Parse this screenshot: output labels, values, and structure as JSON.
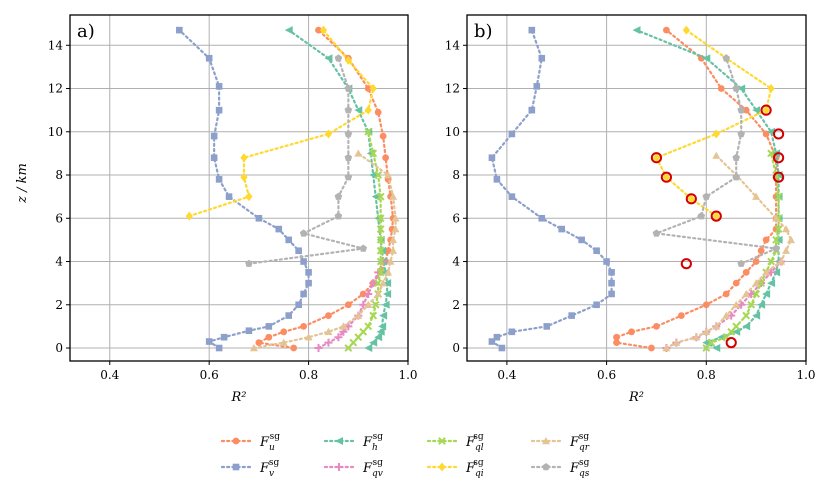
{
  "chart_data": {
    "type": "line",
    "xlabel": "R²",
    "ylabel": "z / km",
    "xlim": [
      0.32,
      1.0
    ],
    "ylim": [
      -0.6,
      15.4
    ],
    "xticks": [
      "0.4",
      "0.6",
      "0.8",
      "1.0"
    ],
    "yticks": [
      "0",
      "2",
      "4",
      "6",
      "8",
      "10",
      "12",
      "14"
    ],
    "grid": true,
    "legend_position": "bottom-center",
    "legend_entries": [
      {
        "id": "Fu",
        "base": "F",
        "sub": "u",
        "sup": "sg",
        "color": "#fc8d62",
        "marker": "circle"
      },
      {
        "id": "Fv",
        "base": "F",
        "sub": "v",
        "sup": "sg",
        "color": "#8da0cb",
        "marker": "square"
      },
      {
        "id": "Fh",
        "base": "F",
        "sub": "h",
        "sup": "sg",
        "color": "#66c2a5",
        "marker": "triangle-left"
      },
      {
        "id": "Fqv",
        "base": "F",
        "sub": "qv",
        "sup": "sg",
        "color": "#e78ac3",
        "marker": "plus"
      },
      {
        "id": "Fql",
        "base": "F",
        "sub": "ql",
        "sup": "sg",
        "color": "#a6d854",
        "marker": "x"
      },
      {
        "id": "Fqi",
        "base": "F",
        "sub": "qi",
        "sup": "sg",
        "color": "#ffd92f",
        "marker": "diamond"
      },
      {
        "id": "Fqr",
        "base": "F",
        "sub": "qr",
        "sup": "sg",
        "color": "#e5c494",
        "marker": "triangle-up"
      },
      {
        "id": "Fqs",
        "base": "F",
        "sub": "qs",
        "sup": "sg",
        "color": "#b3b3b3",
        "marker": "pentagon"
      }
    ],
    "panels": [
      {
        "label": "a)",
        "series": [
          {
            "key": "Fu",
            "z": [
              0.0,
              0.25,
              0.5,
              0.75,
              1.0,
              1.5,
              2.0,
              2.5,
              3.0,
              3.5,
              4.0,
              4.5,
              5.0,
              5.5,
              6.0,
              7.0,
              7.8,
              8.8,
              9.8,
              10.9,
              12.0,
              13.4,
              14.7
            ],
            "x": [
              0.77,
              0.7,
              0.72,
              0.75,
              0.79,
              0.84,
              0.88,
              0.91,
              0.93,
              0.945,
              0.955,
              0.96,
              0.965,
              0.968,
              0.97,
              0.965,
              0.96,
              0.955,
              0.95,
              0.94,
              0.92,
              0.88,
              0.82
            ]
          },
          {
            "key": "Fv",
            "z": [
              0.0,
              0.3,
              0.5,
              0.8,
              1.0,
              1.5,
              2.0,
              2.5,
              3.0,
              3.5,
              4.0,
              4.5,
              5.0,
              5.5,
              6.0,
              7.0,
              7.8,
              8.8,
              9.8,
              11.0,
              12.1,
              13.4,
              14.7
            ],
            "x": [
              0.62,
              0.6,
              0.63,
              0.68,
              0.72,
              0.76,
              0.78,
              0.79,
              0.8,
              0.8,
              0.79,
              0.78,
              0.76,
              0.74,
              0.7,
              0.64,
              0.62,
              0.61,
              0.61,
              0.62,
              0.62,
              0.6,
              0.54
            ]
          },
          {
            "key": "Fh",
            "z": [
              0.0,
              0.25,
              0.5,
              0.75,
              1.0,
              1.5,
              2.0,
              2.5,
              3.0,
              3.5,
              4.0,
              4.5,
              5.0,
              6.0,
              7.0,
              8.0,
              9.0,
              10.0,
              11.0,
              12.0,
              13.4,
              14.7
            ],
            "x": [
              0.92,
              0.93,
              0.94,
              0.945,
              0.948,
              0.95,
              0.955,
              0.958,
              0.958,
              0.955,
              0.95,
              0.948,
              0.945,
              0.94,
              0.935,
              0.93,
              0.925,
              0.92,
              0.9,
              0.88,
              0.84,
              0.76
            ]
          },
          {
            "key": "Fqv",
            "z": [
              0.0,
              0.25,
              0.5,
              0.75,
              1.0,
              1.5,
              2.0,
              2.5,
              3.0,
              3.5,
              4.0
            ],
            "x": [
              0.82,
              0.84,
              0.86,
              0.87,
              0.88,
              0.9,
              0.91,
              0.92,
              0.93,
              0.94,
              0.95
            ]
          },
          {
            "key": "Fql",
            "z": [
              0.0,
              0.25,
              0.5,
              0.75,
              1.0,
              1.5,
              2.0,
              2.5,
              3.0,
              3.5,
              4.0,
              4.5,
              5.0,
              5.5,
              6.0,
              7.0,
              8.0,
              9.0,
              10.0
            ],
            "x": [
              0.88,
              0.89,
              0.9,
              0.91,
              0.92,
              0.93,
              0.935,
              0.94,
              0.94,
              0.945,
              0.945,
              0.945,
              0.945,
              0.945,
              0.945,
              0.945,
              0.94,
              0.93,
              0.92
            ]
          },
          {
            "key": "Fqi",
            "z": [
              6.1,
              7.0,
              7.9,
              8.8,
              9.9,
              11.0,
              12.0,
              13.3,
              14.7
            ],
            "x": [
              0.56,
              0.68,
              0.67,
              0.67,
              0.84,
              0.92,
              0.93,
              0.88,
              0.83
            ]
          },
          {
            "key": "Fqr",
            "z": [
              0.0,
              0.25,
              0.5,
              0.75,
              1.0,
              1.5,
              2.0,
              2.5,
              3.0,
              3.5,
              4.0,
              4.5,
              5.0,
              5.5,
              6.0,
              7.0,
              8.0,
              9.0
            ],
            "x": [
              0.69,
              0.75,
              0.8,
              0.84,
              0.87,
              0.9,
              0.92,
              0.94,
              0.95,
              0.96,
              0.965,
              0.97,
              0.97,
              0.975,
              0.975,
              0.97,
              0.96,
              0.9
            ]
          },
          {
            "key": "Fqs",
            "z": [
              3.9,
              4.6,
              5.3,
              6.1,
              7.0,
              7.9,
              8.8,
              9.9,
              11.0,
              12.0,
              13.4
            ],
            "x": [
              0.68,
              0.91,
              0.79,
              0.86,
              0.86,
              0.88,
              0.88,
              0.88,
              0.88,
              0.88,
              0.86
            ]
          }
        ],
        "highlight_points": []
      },
      {
        "label": "b)",
        "series": [
          {
            "key": "Fu",
            "z": [
              0.0,
              0.25,
              0.5,
              0.75,
              1.0,
              1.5,
              2.0,
              2.5,
              3.0,
              3.5,
              4.0,
              4.5,
              5.0,
              5.5,
              6.0,
              7.0,
              7.9,
              8.8,
              9.9,
              11.0,
              12.0,
              13.4,
              14.7
            ],
            "x": [
              0.69,
              0.62,
              0.62,
              0.65,
              0.7,
              0.75,
              0.8,
              0.84,
              0.86,
              0.88,
              0.9,
              0.91,
              0.92,
              0.94,
              0.94,
              0.94,
              0.94,
              0.94,
              0.92,
              0.88,
              0.83,
              0.79,
              0.72
            ]
          },
          {
            "key": "Fv",
            "z": [
              0.0,
              0.3,
              0.5,
              0.75,
              1.0,
              1.5,
              2.0,
              2.5,
              3.0,
              3.5,
              4.0,
              4.5,
              5.0,
              5.5,
              6.0,
              7.0,
              7.8,
              8.8,
              9.9,
              11.0,
              12.1,
              13.4,
              14.7
            ],
            "x": [
              0.39,
              0.37,
              0.38,
              0.41,
              0.48,
              0.53,
              0.58,
              0.61,
              0.61,
              0.61,
              0.6,
              0.58,
              0.55,
              0.51,
              0.47,
              0.41,
              0.38,
              0.37,
              0.41,
              0.45,
              0.46,
              0.47,
              0.45
            ]
          },
          {
            "key": "Fh",
            "z": [
              0.0,
              0.25,
              0.5,
              0.75,
              1.0,
              1.5,
              2.0,
              2.5,
              3.0,
              3.5,
              4.0,
              5.0,
              6.0,
              7.0,
              8.0,
              9.0,
              10.0,
              11.0,
              12.0,
              13.4,
              14.7
            ],
            "x": [
              0.82,
              0.8,
              0.83,
              0.86,
              0.88,
              0.9,
              0.91,
              0.92,
              0.93,
              0.94,
              0.945,
              0.945,
              0.945,
              0.945,
              0.945,
              0.94,
              0.93,
              0.9,
              0.87,
              0.8,
              0.66
            ]
          },
          {
            "key": "Fqv",
            "z": [
              0.0,
              0.25,
              0.5,
              0.75,
              1.0,
              1.5,
              2.0,
              2.5,
              3.0,
              3.5,
              4.0
            ],
            "x": [
              0.72,
              0.74,
              0.78,
              0.8,
              0.82,
              0.85,
              0.87,
              0.89,
              0.91,
              0.93,
              0.95
            ]
          },
          {
            "key": "Fql",
            "z": [
              0.0,
              0.25,
              0.5,
              0.75,
              1.0,
              1.5,
              2.0,
              2.5,
              3.0,
              3.5,
              4.0,
              4.5,
              5.0,
              5.5,
              6.0,
              7.0,
              8.0,
              9.0
            ],
            "x": [
              0.8,
              0.81,
              0.84,
              0.85,
              0.86,
              0.88,
              0.89,
              0.9,
              0.91,
              0.92,
              0.93,
              0.94,
              0.94,
              0.945,
              0.945,
              0.945,
              0.94,
              0.93
            ]
          },
          {
            "key": "Fqi",
            "z": [
              6.1,
              6.9,
              7.9,
              8.8,
              9.9,
              11.0,
              12.0,
              13.4,
              14.7
            ],
            "x": [
              0.82,
              0.77,
              0.72,
              0.7,
              0.82,
              0.92,
              0.93,
              0.84,
              0.76
            ]
          },
          {
            "key": "Fqr",
            "z": [
              0.0,
              0.25,
              0.5,
              0.75,
              1.0,
              1.5,
              2.0,
              2.5,
              3.0,
              3.5,
              4.0,
              4.5,
              5.0,
              5.5,
              6.0,
              7.0,
              8.0,
              8.9
            ],
            "x": [
              0.72,
              0.74,
              0.78,
              0.8,
              0.82,
              0.84,
              0.86,
              0.88,
              0.9,
              0.92,
              0.95,
              0.96,
              0.97,
              0.96,
              0.94,
              0.9,
              0.86,
              0.82
            ]
          },
          {
            "key": "Fqs",
            "z": [
              3.9,
              4.6,
              5.3,
              6.1,
              7.0,
              7.9,
              8.8,
              9.9,
              11.0,
              12.0,
              13.4
            ],
            "x": [
              0.87,
              0.94,
              0.7,
              0.79,
              0.8,
              0.86,
              0.86,
              0.87,
              0.87,
              0.86,
              0.84
            ]
          }
        ],
        "highlight_points": [
          {
            "x": 0.85,
            "z": 0.25
          },
          {
            "x": 0.76,
            "z": 3.9
          },
          {
            "x": 0.82,
            "z": 6.1
          },
          {
            "x": 0.77,
            "z": 6.9
          },
          {
            "x": 0.72,
            "z": 7.9
          },
          {
            "x": 0.945,
            "z": 7.9
          },
          {
            "x": 0.7,
            "z": 8.8
          },
          {
            "x": 0.945,
            "z": 8.8
          },
          {
            "x": 0.945,
            "z": 9.9
          },
          {
            "x": 0.92,
            "z": 11.0
          }
        ]
      }
    ]
  }
}
